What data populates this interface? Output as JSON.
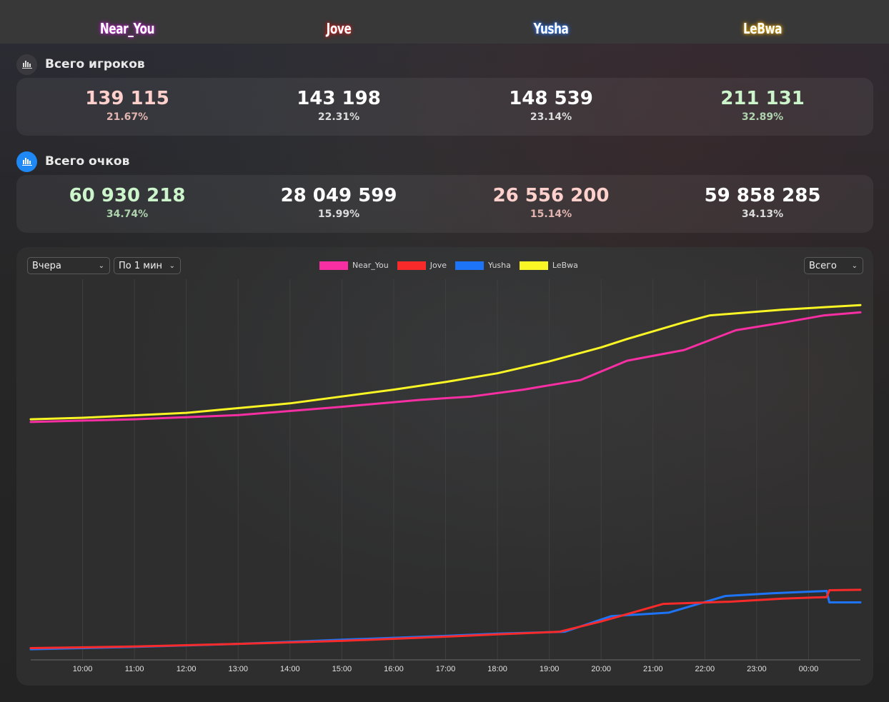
{
  "players": [
    {
      "name": "Near_You",
      "color": "#f72fa3"
    },
    {
      "name": "Jove",
      "color": "#f82a2a"
    },
    {
      "name": "Yusha",
      "color": "#1e74f7"
    },
    {
      "name": "LeBwa",
      "color": "#faf524"
    }
  ],
  "total_players": {
    "title": "Всего игроков",
    "icon": "bar-chart-icon",
    "values": [
      {
        "value": "139 115",
        "percent": "21.67%",
        "value_color": "#ffd0cc",
        "percent_color": "#e2b4b0"
      },
      {
        "value": "143 198",
        "percent": "22.31%",
        "value_color": "#ffffff",
        "percent_color": "#dcdcdc"
      },
      {
        "value": "148 539",
        "percent": "23.14%",
        "value_color": "#ffffff",
        "percent_color": "#dcdcdc"
      },
      {
        "value": "211 131",
        "percent": "32.89%",
        "value_color": "#ccf5cc",
        "percent_color": "#aed3ae"
      }
    ]
  },
  "total_points": {
    "title": "Всего очков",
    "icon": "bar-chart-icon",
    "values": [
      {
        "value": "60 930 218",
        "percent": "34.74%",
        "value_color": "#ccf5cc",
        "percent_color": "#aed3ae"
      },
      {
        "value": "28 049 599",
        "percent": "15.99%",
        "value_color": "#ffffff",
        "percent_color": "#dcdcdc"
      },
      {
        "value": "26 556 200",
        "percent": "15.14%",
        "value_color": "#ffd0cc",
        "percent_color": "#e2b4b0"
      },
      {
        "value": "59 858 285",
        "percent": "34.13%",
        "value_color": "#ffffff",
        "percent_color": "#dcdcdc"
      }
    ]
  },
  "controls": {
    "period": "Вчера",
    "interval": "По 1 мин",
    "scope": "Всего"
  },
  "chart_data": {
    "type": "line",
    "title": "",
    "xlabel": "",
    "ylabel": "",
    "x_ticks": [
      "10:00",
      "11:00",
      "12:00",
      "13:00",
      "14:00",
      "15:00",
      "16:00",
      "17:00",
      "18:00",
      "19:00",
      "20:00",
      "21:00",
      "22:00",
      "23:00",
      "00:00"
    ],
    "x_range_hours": [
      9.0,
      25.0
    ],
    "y_axis_hidden": true,
    "y_range": [
      0,
      100
    ],
    "grid": "vertical",
    "legend": "top-center",
    "series": [
      {
        "name": "Near_You",
        "color": "#f72fa3",
        "x": [
          9.0,
          11,
          13,
          15,
          16.5,
          17.5,
          18.5,
          19.6,
          20.5,
          21.6,
          22.6,
          23.5,
          24.3,
          25.0
        ],
        "y": [
          62.5,
          63.2,
          64.3,
          66.5,
          68.3,
          69.2,
          71.0,
          73.5,
          78.6,
          81.4,
          86.6,
          88.6,
          90.5,
          91.3
        ]
      },
      {
        "name": "Jove",
        "color": "#f82a2a",
        "x": [
          9.0,
          11,
          13,
          15,
          17,
          18,
          19.2,
          20,
          21.2,
          22.5,
          23.5,
          24.35,
          24.4,
          25.0
        ],
        "y": [
          3.1,
          3.5,
          4.2,
          5.0,
          6.1,
          6.7,
          7.4,
          10.1,
          14.7,
          15.3,
          16.1,
          16.5,
          18.3,
          18.4
        ]
      },
      {
        "name": "Yusha",
        "color": "#1e74f7",
        "x": [
          9.0,
          11,
          13,
          15,
          17,
          18,
          19.3,
          20.2,
          21.3,
          22.4,
          23.3,
          24.35,
          24.4,
          25.0
        ],
        "y": [
          2.8,
          3.4,
          4.2,
          5.3,
          6.3,
          6.9,
          7.4,
          11.5,
          12.4,
          16.8,
          17.5,
          18.1,
          15.1,
          15.1
        ]
      },
      {
        "name": "LeBwa",
        "color": "#faf524",
        "x": [
          9.0,
          10,
          12,
          14,
          16,
          17,
          18,
          19,
          20,
          20.5,
          21.6,
          22.1,
          23.5,
          25.0
        ],
        "y": [
          63.2,
          63.6,
          64.9,
          67.4,
          71.0,
          73.0,
          75.3,
          78.4,
          82.1,
          84.3,
          88.7,
          90.5,
          92.0,
          93.2
        ]
      }
    ]
  }
}
